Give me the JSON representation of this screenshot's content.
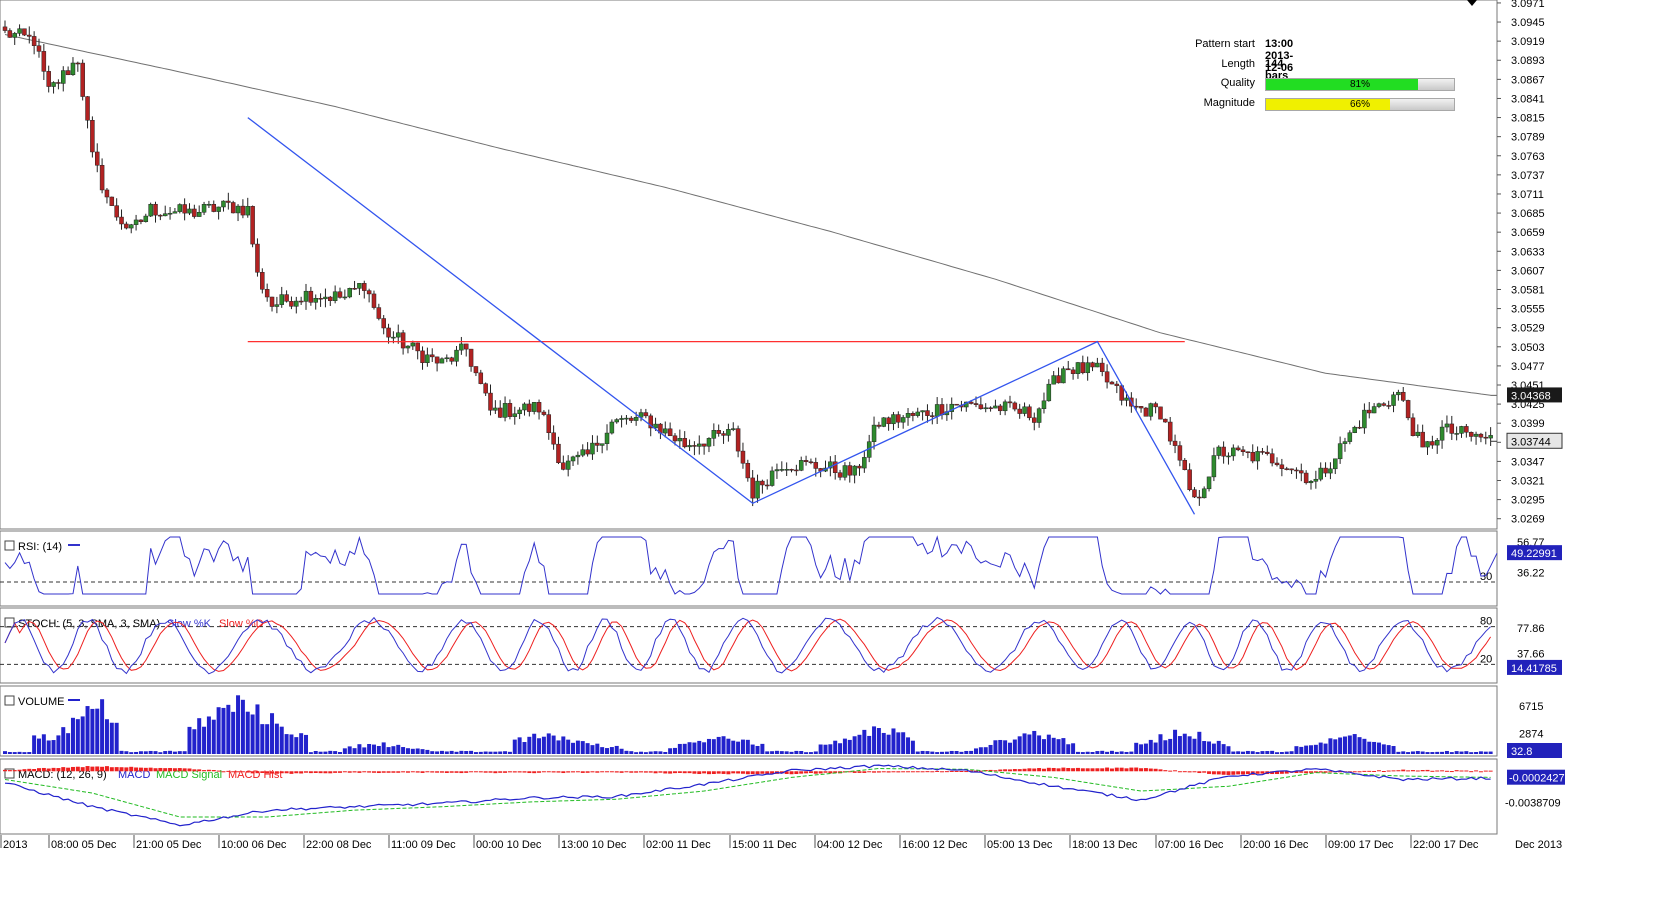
{
  "pattern_info": {
    "pattern_start_label": "Pattern start",
    "pattern_start_value": "13:00 2013-12-06",
    "length_label": "Length",
    "length_value": "144 bars",
    "quality_label": "Quality",
    "quality_value": "81%",
    "quality_fraction": 0.81,
    "magnitude_label": "Magnitude",
    "magnitude_value": "66%",
    "magnitude_fraction": 0.66
  },
  "colors": {
    "bull_candle": "#2e8b2e",
    "bear_candle": "#b22222",
    "pattern_line": "#3355ee",
    "neckline": "#ff3030",
    "moving_average": "#707070",
    "rsi": "#3333cc",
    "stoch_k": "#3333cc",
    "stoch_d": "#ee2020",
    "volume": "#2222cc",
    "macd": "#2222cc",
    "macd_signal": "#22bb22",
    "macd_hist": "#ee2020",
    "quality_bar": "#22dd22",
    "magnitude_bar": "#f0f000",
    "price_box_bg": "#2222bb",
    "price_box_text": "#ffffff",
    "current_box_bg": "#1a1a1a"
  },
  "chart_data": [
    {
      "type": "candlestick",
      "panel": "price",
      "y_ticks": [
        "3.0971",
        "3.0945",
        "3.0919",
        "3.0893",
        "3.0867",
        "3.0841",
        "3.0815",
        "3.0789",
        "3.0763",
        "3.0737",
        "3.0711",
        "3.0685",
        "3.0659",
        "3.0633",
        "3.0607",
        "3.0581",
        "3.0555",
        "3.0529",
        "3.0503",
        "3.0477",
        "3.0451",
        "3.0425",
        "3.0399",
        "3.0373",
        "3.0347",
        "3.0321",
        "3.0295",
        "3.0269"
      ],
      "ylim": [
        3.0255,
        3.0975
      ],
      "ma_label": "3.04368",
      "ma_value": 3.04368,
      "current_label": "3.03744",
      "current_value": 3.03744,
      "neckline": {
        "value": 3.051,
        "from_bar": 50,
        "to_bar": 243
      },
      "pattern_points": [
        {
          "bar": 50,
          "price": 3.0815
        },
        {
          "bar": 154,
          "price": 3.029
        },
        {
          "bar": 225,
          "price": 3.051
        },
        {
          "bar": 245,
          "price": 3.0275
        }
      ],
      "trend_points": [
        3.0928,
        3.088,
        3.083,
        3.0773,
        3.072,
        3.066,
        3.0595,
        3.0522,
        3.0467,
        3.0437
      ],
      "anchors": [
        {
          "bar": 0,
          "price": 3.093
        },
        {
          "bar": 6,
          "price": 3.092
        },
        {
          "bar": 9,
          "price": 3.085
        },
        {
          "bar": 15,
          "price": 3.0895
        },
        {
          "bar": 18,
          "price": 3.076
        },
        {
          "bar": 22,
          "price": 3.069
        },
        {
          "bar": 26,
          "price": 3.066
        },
        {
          "bar": 30,
          "price": 3.069
        },
        {
          "bar": 38,
          "price": 3.0685
        },
        {
          "bar": 46,
          "price": 3.0695
        },
        {
          "bar": 50,
          "price": 3.069
        },
        {
          "bar": 52,
          "price": 3.06
        },
        {
          "bar": 55,
          "price": 3.056
        },
        {
          "bar": 62,
          "price": 3.0575
        },
        {
          "bar": 70,
          "price": 3.057
        },
        {
          "bar": 74,
          "price": 3.059
        },
        {
          "bar": 78,
          "price": 3.0525
        },
        {
          "bar": 85,
          "price": 3.0495
        },
        {
          "bar": 90,
          "price": 3.048
        },
        {
          "bar": 95,
          "price": 3.05
        },
        {
          "bar": 100,
          "price": 3.0415
        },
        {
          "bar": 110,
          "price": 3.042
        },
        {
          "bar": 115,
          "price": 3.034
        },
        {
          "bar": 120,
          "price": 3.0355
        },
        {
          "bar": 125,
          "price": 3.04
        },
        {
          "bar": 132,
          "price": 3.0405
        },
        {
          "bar": 140,
          "price": 3.037
        },
        {
          "bar": 150,
          "price": 3.0385
        },
        {
          "bar": 154,
          "price": 3.0305
        },
        {
          "bar": 160,
          "price": 3.0345
        },
        {
          "bar": 168,
          "price": 3.034
        },
        {
          "bar": 175,
          "price": 3.033
        },
        {
          "bar": 180,
          "price": 3.04
        },
        {
          "bar": 188,
          "price": 3.041
        },
        {
          "bar": 195,
          "price": 3.0425
        },
        {
          "bar": 205,
          "price": 3.042
        },
        {
          "bar": 212,
          "price": 3.041
        },
        {
          "bar": 218,
          "price": 3.0475
        },
        {
          "bar": 225,
          "price": 3.047
        },
        {
          "bar": 232,
          "price": 3.042
        },
        {
          "bar": 238,
          "price": 3.0415
        },
        {
          "bar": 245,
          "price": 3.029
        },
        {
          "bar": 250,
          "price": 3.036
        },
        {
          "bar": 262,
          "price": 3.035
        },
        {
          "bar": 270,
          "price": 3.032
        },
        {
          "bar": 280,
          "price": 3.041
        },
        {
          "bar": 287,
          "price": 3.044
        },
        {
          "bar": 292,
          "price": 3.036
        },
        {
          "bar": 296,
          "price": 3.039
        },
        {
          "bar": 303,
          "price": 3.038
        },
        {
          "bar": 306,
          "price": 3.0378
        }
      ]
    },
    {
      "type": "line",
      "panel": "rsi",
      "title": "RSI: (14)",
      "y_ticks": [
        "56.77",
        "36.22"
      ],
      "level_label": "30",
      "level": 30,
      "ylim": [
        14,
        64
      ],
      "current_label": "49.22991",
      "current_value": 49.22991
    },
    {
      "type": "line",
      "panel": "stoch",
      "title": "STOCH: (5, 3, SMA, 3, SMA)",
      "series_k": "Slow %K",
      "series_d": "Slow %D",
      "y_ticks": [
        "77.86",
        "37.66"
      ],
      "levels": [
        80,
        20
      ],
      "level_labels": [
        "80",
        "20"
      ],
      "ylim": [
        0,
        100
      ],
      "current_label": "14.41785",
      "current_value": 14.41785
    },
    {
      "type": "bar",
      "panel": "volume",
      "title": "VOLUME",
      "y_ticks": [
        "6715",
        "2874"
      ],
      "ylim": [
        0,
        9000
      ],
      "current_label": "32.8",
      "current_value": 32.8,
      "clusters": [
        {
          "start": 6,
          "end": 23,
          "peak": 8300,
          "peak_pos": 0.78
        },
        {
          "start": 38,
          "end": 62,
          "peak": 8900,
          "peak_pos": 0.42
        },
        {
          "start": 70,
          "end": 87,
          "peak": 1900,
          "peak_pos": 0.4
        },
        {
          "start": 105,
          "end": 127,
          "peak": 3400,
          "peak_pos": 0.3
        },
        {
          "start": 137,
          "end": 156,
          "peak": 3100,
          "peak_pos": 0.55
        },
        {
          "start": 168,
          "end": 187,
          "peak": 4600,
          "peak_pos": 0.65
        },
        {
          "start": 200,
          "end": 220,
          "peak": 3700,
          "peak_pos": 0.6
        },
        {
          "start": 233,
          "end": 252,
          "peak": 4000,
          "peak_pos": 0.5
        },
        {
          "start": 266,
          "end": 286,
          "peak": 3300,
          "peak_pos": 0.6
        }
      ]
    },
    {
      "type": "line",
      "panel": "macd",
      "title": "MACD: (12, 26, 9)",
      "series_macd": "MACD",
      "series_signal": "MACD Signal",
      "series_hist": "MACD Hist",
      "y_ticks": [
        "-0.0038709"
      ],
      "ylim": [
        -0.0085,
        0.0025
      ],
      "current_label": "-0.0002427",
      "current_value": -0.0002427,
      "macd_points": [
        -0.001,
        -0.0045,
        -0.0072,
        -0.005,
        -0.0045,
        -0.004,
        -0.0032,
        -0.003,
        -0.0012,
        0.0008,
        0.0015,
        0.0008,
        -0.0015,
        -0.0035,
        0.0,
        0.001,
        -0.0005,
        -0.0003
      ],
      "signal_points": [
        -0.0005,
        -0.0025,
        -0.006,
        -0.006,
        -0.005,
        -0.0045,
        -0.0038,
        -0.0034,
        -0.0022,
        -0.0002,
        0.0011,
        0.001,
        -0.0002,
        -0.0022,
        -0.0015,
        0.0005,
        0.0,
        -0.0002
      ]
    }
  ],
  "x_axis": {
    "labels": [
      "2013",
      "08:00 05 Dec",
      "21:00 05 Dec",
      "10:00 06 Dec",
      "22:00 08 Dec",
      "11:00 09 Dec",
      "00:00 10 Dec",
      "13:00 10 Dec",
      "02:00 11 Dec",
      "15:00 11 Dec",
      "04:00 12 Dec",
      "16:00 12 Dec",
      "05:00 13 Dec",
      "18:00 13 Dec",
      "07:00 16 Dec",
      "20:00 16 Dec",
      "09:00 17 Dec",
      "22:00 17 Dec"
    ],
    "right_label": "Dec 2013"
  }
}
